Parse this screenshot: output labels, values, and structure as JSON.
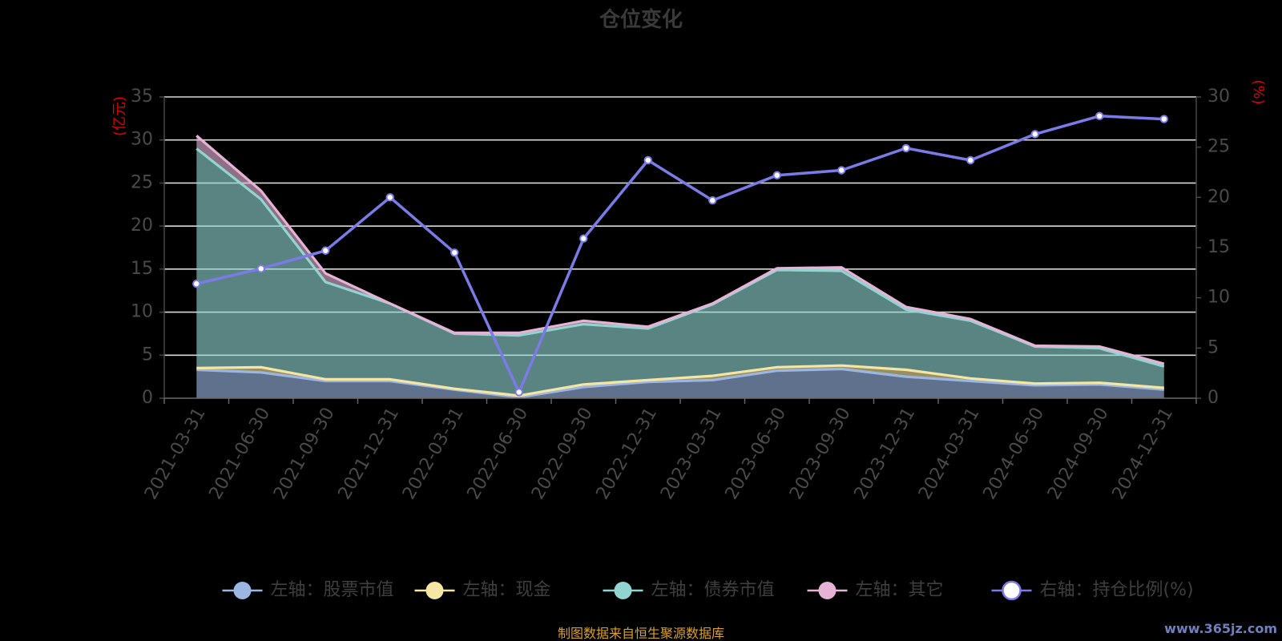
{
  "chart_data": {
    "type": "area",
    "title": "仓位变化",
    "left_unit": "(亿元)",
    "right_unit": "(%)",
    "categories": [
      "2021-03-31",
      "2021-06-30",
      "2021-09-30",
      "2021-12-31",
      "2022-03-31",
      "2022-06-30",
      "2022-09-30",
      "2022-12-31",
      "2023-03-31",
      "2023-06-30",
      "2023-09-30",
      "2023-12-31",
      "2024-03-31",
      "2024-06-30",
      "2024-09-30",
      "2024-12-31"
    ],
    "left_ylim": [
      0,
      35
    ],
    "left_ticks": [
      0,
      5,
      10,
      15,
      20,
      25,
      30,
      35
    ],
    "right_ylim": [
      0,
      30
    ],
    "right_ticks": [
      0,
      5,
      10,
      15,
      20,
      25,
      30
    ],
    "stacked": true,
    "grid": true,
    "legend_position": "bottom",
    "series": [
      {
        "name": "左轴：股票市值",
        "axis": "left",
        "color": "#9bb6e3",
        "values": [
          3.3,
          3.0,
          2.0,
          2.0,
          1.0,
          0.1,
          1.3,
          1.9,
          2.1,
          3.2,
          3.4,
          2.5,
          2.0,
          1.5,
          1.6,
          1.0
        ]
      },
      {
        "name": "左轴：现金",
        "axis": "left",
        "color": "#f5e6a3",
        "values": [
          0.2,
          0.6,
          0.2,
          0.2,
          0.1,
          0.2,
          0.3,
          0.2,
          0.5,
          0.4,
          0.4,
          0.8,
          0.3,
          0.2,
          0.2,
          0.2
        ]
      },
      {
        "name": "左轴：债券市值",
        "axis": "left",
        "color": "#91d5d0",
        "values": [
          25.5,
          19.5,
          11.3,
          8.8,
          6.4,
          7.0,
          7.0,
          6.0,
          8.3,
          11.3,
          11.0,
          7.0,
          6.7,
          4.3,
          4.0,
          2.5
        ]
      },
      {
        "name": "左轴：其它",
        "axis": "left",
        "color": "#e6b3d6",
        "values": [
          1.5,
          1.0,
          1.0,
          0.0,
          0.1,
          0.3,
          0.4,
          0.2,
          0.1,
          0.2,
          0.4,
          0.3,
          0.2,
          0.1,
          0.2,
          0.3
        ]
      },
      {
        "name": "右轴：持仓比例(%)",
        "axis": "right",
        "color": "#7b7be8",
        "values": [
          11.4,
          12.9,
          14.7,
          20.0,
          14.5,
          0.6,
          15.9,
          23.7,
          19.7,
          22.2,
          22.7,
          24.9,
          23.7,
          26.3,
          28.1,
          27.8
        ]
      }
    ]
  },
  "footer": "制图数据来自恒生聚源数据库",
  "watermark": "www.365jz.com"
}
